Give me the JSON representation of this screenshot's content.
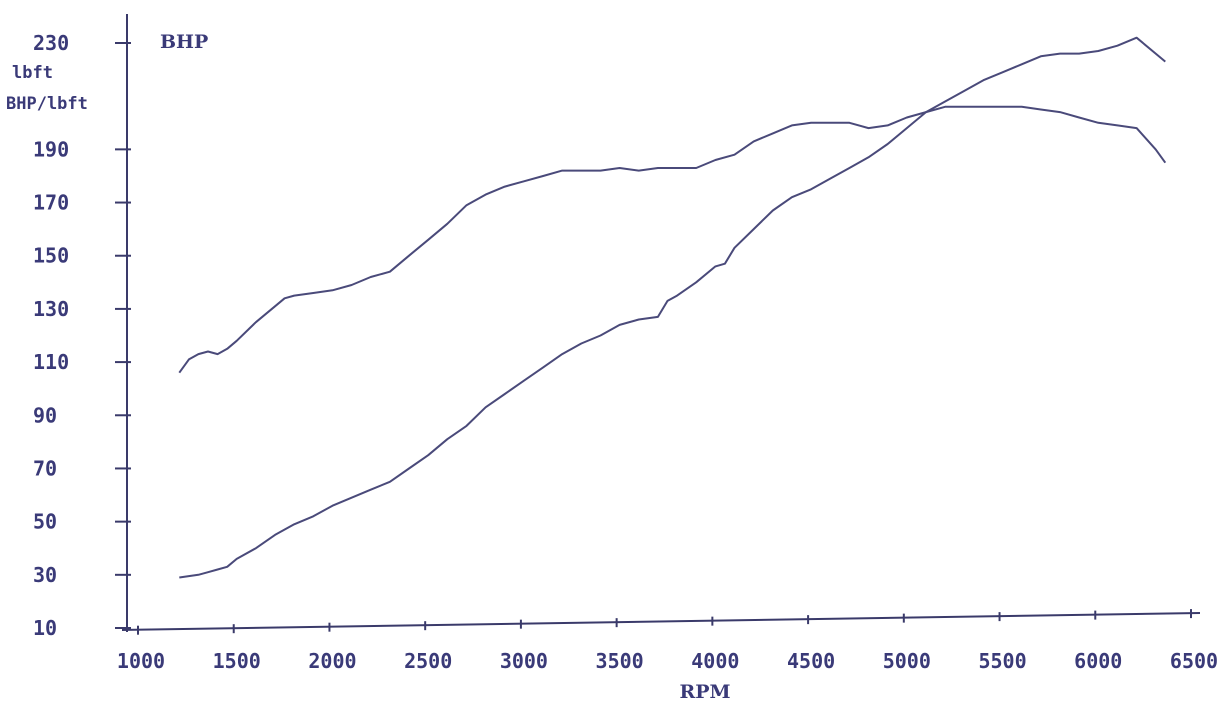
{
  "chart_data": {
    "type": "line",
    "series_label": "BHP",
    "y_unit_label": "lbft",
    "y_unit_label_2": "BHP/lbft",
    "xlabel": "RPM",
    "xlim": [
      1000,
      6500
    ],
    "ylim": [
      10,
      235
    ],
    "x_ticks": [
      1000,
      1500,
      2000,
      2500,
      3000,
      3500,
      4000,
      4500,
      5000,
      5500,
      6000,
      6500
    ],
    "y_ticks": [
      10,
      30,
      50,
      70,
      90,
      110,
      130,
      150,
      170,
      190,
      230
    ],
    "grid": false,
    "colors": {
      "axis": "#3a3a6a",
      "text": "#3a3a78",
      "series": "#4a4a7a"
    },
    "series": [
      {
        "x": [
          1200,
          1250,
          1300,
          1350,
          1400,
          1450,
          1500,
          1600,
          1700,
          1750,
          1800,
          1900,
          2000,
          2100,
          2200,
          2300,
          2400,
          2500,
          2600,
          2700,
          2800,
          2900,
          3000,
          3100,
          3200,
          3300,
          3400,
          3500,
          3600,
          3700,
          3800,
          3900,
          4000,
          4100,
          4200,
          4300,
          4400,
          4500,
          4600,
          4700,
          4800,
          4900,
          5000,
          5100,
          5200,
          5300,
          5400,
          5500,
          5600,
          5700,
          5800,
          5900,
          6000,
          6100,
          6200,
          6300,
          6350
        ],
        "values": [
          106,
          111,
          113,
          114,
          113,
          115,
          118,
          125,
          131,
          134,
          135,
          136,
          137,
          139,
          142,
          144,
          150,
          156,
          162,
          169,
          173,
          176,
          178,
          180,
          182,
          182,
          182,
          183,
          182,
          183,
          183,
          183,
          186,
          188,
          193,
          196,
          199,
          200,
          200,
          200,
          198,
          199,
          202,
          204,
          206,
          206,
          206,
          206,
          206,
          205,
          204,
          202,
          200,
          199,
          198,
          190,
          185
        ]
      },
      {
        "x": [
          1200,
          1300,
          1350,
          1400,
          1450,
          1500,
          1600,
          1700,
          1800,
          1900,
          2000,
          2100,
          2200,
          2300,
          2400,
          2500,
          2600,
          2700,
          2800,
          2900,
          3000,
          3100,
          3200,
          3300,
          3400,
          3500,
          3600,
          3700,
          3750,
          3800,
          3900,
          4000,
          4050,
          4100,
          4200,
          4300,
          4400,
          4500,
          4600,
          4700,
          4800,
          4900,
          5000,
          5100,
          5200,
          5300,
          5400,
          5500,
          5600,
          5700,
          5800,
          5900,
          6000,
          6100,
          6200,
          6300,
          6350
        ],
        "values": [
          29,
          30,
          31,
          32,
          33,
          36,
          40,
          45,
          49,
          52,
          56,
          59,
          62,
          65,
          70,
          75,
          81,
          86,
          93,
          98,
          103,
          108,
          113,
          117,
          120,
          124,
          126,
          127,
          133,
          135,
          140,
          146,
          147,
          153,
          160,
          167,
          172,
          175,
          179,
          183,
          187,
          192,
          198,
          204,
          208,
          212,
          216,
          219,
          222,
          225,
          226,
          226,
          227,
          229,
          232,
          226,
          223
        ]
      }
    ]
  }
}
